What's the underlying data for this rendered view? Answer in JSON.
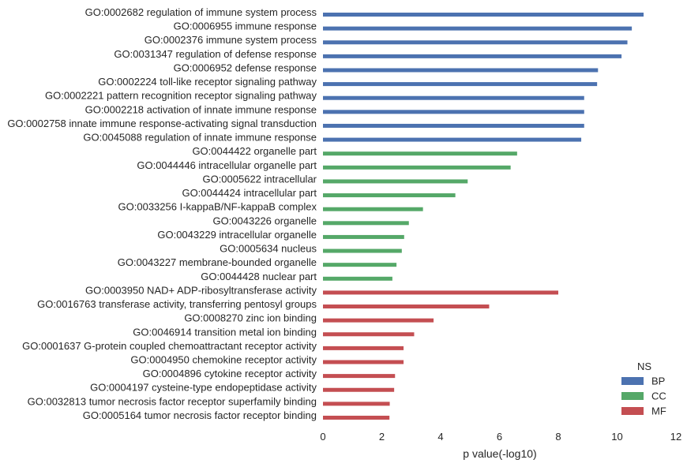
{
  "chart_data": {
    "type": "bar",
    "orientation": "horizontal",
    "xlabel": "p value(-log10)",
    "xlim": [
      0,
      12
    ],
    "xticks": [
      0,
      2,
      4,
      6,
      8,
      10,
      12
    ],
    "grid": false,
    "legend": {
      "title": "NS",
      "placement": "bottom-right",
      "entries": [
        {
          "name": "BP",
          "color": "#4c72b0"
        },
        {
          "name": "CC",
          "color": "#55a868"
        },
        {
          "name": "MF",
          "color": "#c44e52"
        }
      ]
    },
    "categories": [
      "GO:0002682 regulation of immune system process",
      "GO:0006955 immune response",
      "GO:0002376 immune system process",
      "GO:0031347 regulation of defense response",
      "GO:0006952 defense response",
      "GO:0002224 toll-like receptor signaling pathway",
      "GO:0002221 pattern recognition receptor signaling pathway",
      "GO:0002218 activation of innate immune response",
      "GO:0002758 innate immune response-activating signal transduction",
      "GO:0045088 regulation of innate immune response",
      "GO:0044422 organelle part",
      "GO:0044446 intracellular organelle part",
      "GO:0005622 intracellular",
      "GO:0044424 intracellular part",
      "GO:0033256 I-kappaB/NF-kappaB complex",
      "GO:0043226 organelle",
      "GO:0043229 intracellular organelle",
      "GO:0005634 nucleus",
      "GO:0043227 membrane-bounded organelle",
      "GO:0044428 nuclear part",
      "GO:0003950 NAD+ ADP-ribosyltransferase activity",
      "GO:0016763 transferase activity, transferring pentosyl groups",
      "GO:0008270 zinc ion binding",
      "GO:0046914 transition metal ion binding",
      "GO:0001637 G-protein coupled chemoattractant receptor activity",
      "GO:0004950 chemokine receptor activity",
      "GO:0004896 cytokine receptor activity",
      "GO:0004197 cysteine-type endopeptidase activity",
      "GO:0032813 tumor necrosis factor receptor superfamily binding",
      "GO:0005164 tumor necrosis factor receptor binding"
    ],
    "ns": [
      "BP",
      "BP",
      "BP",
      "BP",
      "BP",
      "BP",
      "BP",
      "BP",
      "BP",
      "BP",
      "CC",
      "CC",
      "CC",
      "CC",
      "CC",
      "CC",
      "CC",
      "CC",
      "CC",
      "CC",
      "MF",
      "MF",
      "MF",
      "MF",
      "MF",
      "MF",
      "MF",
      "MF",
      "MF",
      "MF"
    ],
    "values": [
      10.9,
      10.5,
      10.35,
      10.15,
      9.35,
      9.32,
      8.88,
      8.88,
      8.88,
      8.78,
      6.6,
      6.38,
      4.92,
      4.5,
      3.4,
      2.92,
      2.76,
      2.68,
      2.5,
      2.36,
      8.0,
      5.65,
      3.76,
      3.1,
      2.74,
      2.74,
      2.45,
      2.42,
      2.27,
      2.26
    ]
  }
}
